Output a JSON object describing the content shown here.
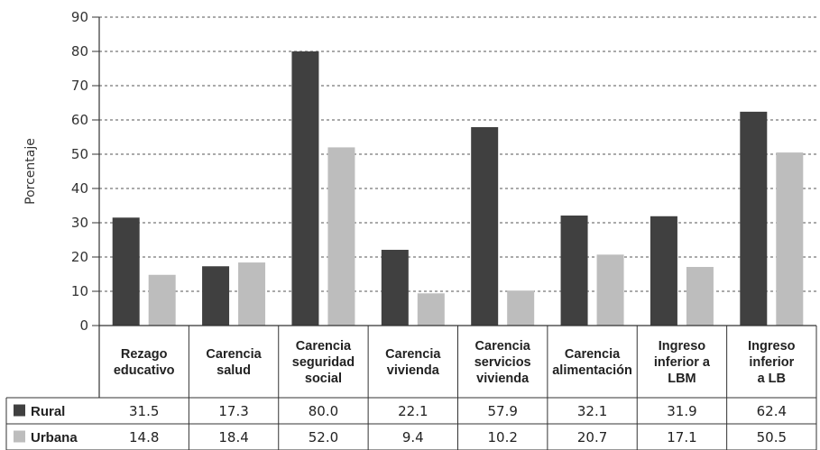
{
  "chart_data": {
    "type": "bar",
    "ylabel": "Porcentaje",
    "ylim": [
      0,
      90
    ],
    "yticks": [
      0,
      10,
      20,
      30,
      40,
      50,
      60,
      70,
      80,
      90
    ],
    "grid": true,
    "categories": [
      [
        "Rezago",
        "educativo"
      ],
      [
        "Carencia",
        "salud"
      ],
      [
        "Carencia",
        "seguridad",
        "social"
      ],
      [
        "Carencia",
        "vivienda"
      ],
      [
        "Carencia",
        "servicios",
        "vivienda"
      ],
      [
        "Carencia",
        "alimentación"
      ],
      [
        "Ingreso",
        "inferior a",
        "LBM"
      ],
      [
        "Ingreso",
        "inferior",
        "a LB"
      ]
    ],
    "series": [
      {
        "name": "Rural",
        "color": "#404040",
        "values": [
          31.5,
          17.3,
          80.0,
          22.1,
          57.9,
          32.1,
          31.9,
          62.4
        ],
        "display": [
          "31.5",
          "17.3",
          "80.0",
          "22.1",
          "57.9",
          "32.1",
          "31.9",
          "62.4"
        ]
      },
      {
        "name": "Urbana",
        "color": "#bdbdbd",
        "values": [
          14.8,
          18.4,
          52.0,
          9.4,
          10.2,
          20.7,
          17.1,
          50.5
        ],
        "display": [
          "14.8",
          "18.4",
          "52.0",
          "9.4",
          "10.2",
          "20.7",
          "17.1",
          "50.5"
        ]
      }
    ]
  }
}
